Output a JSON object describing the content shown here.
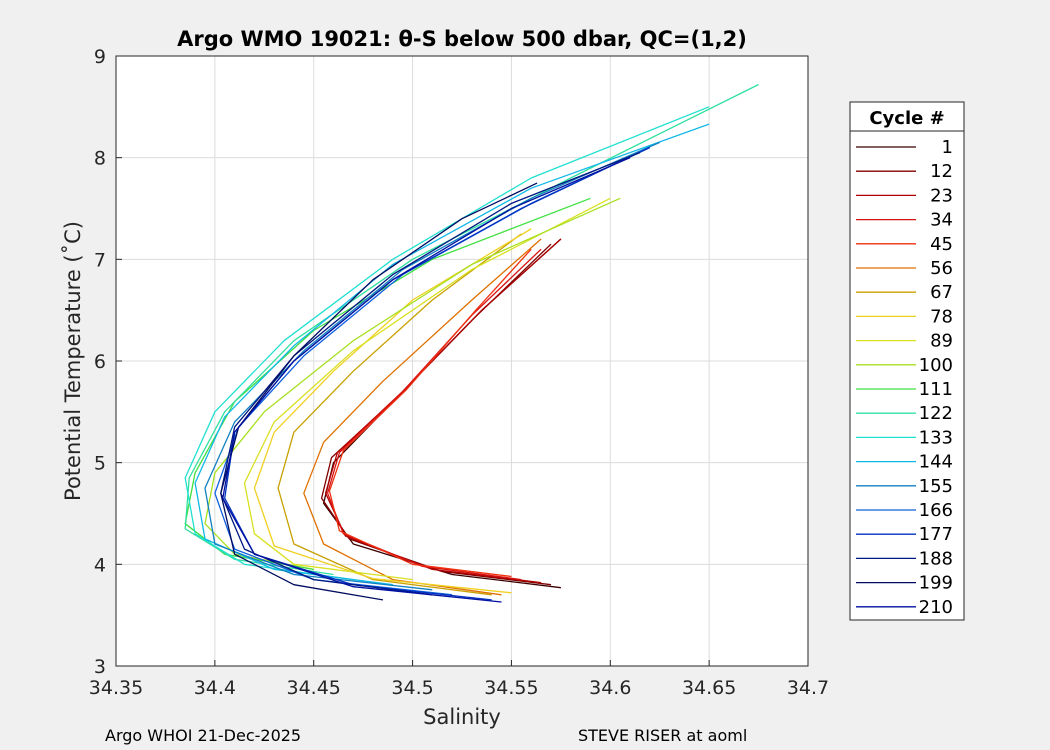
{
  "chart_data": {
    "type": "line",
    "title": "Argo WMO 19021: θ-S below 500 dbar,  QC=(1,2)",
    "xlabel": "Salinity",
    "ylabel": "Potential Temperature (˚C)",
    "xlim": [
      34.35,
      34.7
    ],
    "ylim": [
      3,
      9
    ],
    "xticks": [
      "34.35",
      "34.4",
      "34.45",
      "34.5",
      "34.55",
      "34.6",
      "34.65",
      "34.7"
    ],
    "yticks": [
      "3",
      "4",
      "5",
      "6",
      "7",
      "8",
      "9"
    ],
    "grid": true,
    "legend": {
      "title": "Cycle #",
      "placement": "right-outside",
      "entries": [
        {
          "label": "1",
          "color": "#3a0000"
        },
        {
          "label": "12",
          "color": "#800000"
        },
        {
          "label": "23",
          "color": "#b00000"
        },
        {
          "label": "34",
          "color": "#d81010"
        },
        {
          "label": "45",
          "color": "#f03010"
        },
        {
          "label": "56",
          "color": "#e07000"
        },
        {
          "label": "67",
          "color": "#c8a000"
        },
        {
          "label": "78",
          "color": "#f0d020"
        },
        {
          "label": "89",
          "color": "#d8e020"
        },
        {
          "label": "100",
          "color": "#a8e020"
        },
        {
          "label": "111",
          "color": "#40e040"
        },
        {
          "label": "122",
          "color": "#30e0a0"
        },
        {
          "label": "133",
          "color": "#20e0d0"
        },
        {
          "label": "144",
          "color": "#10b8e8"
        },
        {
          "label": "155",
          "color": "#1080c0"
        },
        {
          "label": "166",
          "color": "#1060e0"
        },
        {
          "label": "177",
          "color": "#0030c0"
        },
        {
          "label": "188",
          "color": "#001880"
        },
        {
          "label": "199",
          "color": "#000c60"
        },
        {
          "label": "210",
          "color": "#0010a0"
        }
      ]
    },
    "series": [
      {
        "name": "1",
        "color": "#3a0000",
        "x": [
          34.575,
          34.52,
          34.47,
          34.455,
          34.46,
          34.49,
          34.535,
          34.575
        ],
        "y": [
          3.77,
          3.9,
          4.2,
          4.6,
          5.0,
          5.6,
          6.5,
          7.2
        ]
      },
      {
        "name": "12",
        "color": "#800000",
        "x": [
          34.57,
          34.515,
          34.468,
          34.454,
          34.459,
          34.49,
          34.53,
          34.57
        ],
        "y": [
          3.8,
          3.93,
          4.25,
          4.65,
          5.05,
          5.6,
          6.4,
          7.15
        ]
      },
      {
        "name": "23",
        "color": "#b00000",
        "x": [
          34.565,
          34.51,
          34.466,
          34.456,
          34.462,
          34.495,
          34.535,
          34.575
        ],
        "y": [
          3.82,
          3.95,
          4.28,
          4.7,
          5.1,
          5.7,
          6.5,
          7.2
        ]
      },
      {
        "name": "34",
        "color": "#d81010",
        "x": [
          34.555,
          34.505,
          34.465,
          34.457,
          34.463,
          34.495,
          34.53,
          34.565
        ],
        "y": [
          3.85,
          3.98,
          4.3,
          4.7,
          5.1,
          5.7,
          6.45,
          7.1
        ]
      },
      {
        "name": "45",
        "color": "#f03010",
        "x": [
          34.55,
          34.5,
          34.463,
          34.458,
          34.465,
          34.497,
          34.532,
          34.56
        ],
        "y": [
          3.88,
          4.0,
          4.33,
          4.72,
          5.12,
          5.72,
          6.5,
          7.1
        ]
      },
      {
        "name": "56",
        "color": "#e07000",
        "x": [
          34.545,
          34.49,
          34.455,
          34.445,
          34.455,
          34.485,
          34.53,
          34.565
        ],
        "y": [
          3.7,
          3.85,
          4.2,
          4.7,
          5.2,
          5.8,
          6.6,
          7.2
        ]
      },
      {
        "name": "67",
        "color": "#c8a000",
        "x": [
          34.54,
          34.48,
          34.44,
          34.432,
          34.44,
          34.47,
          34.51,
          34.555
        ],
        "y": [
          3.7,
          3.85,
          4.2,
          4.75,
          5.3,
          5.9,
          6.6,
          7.25
        ]
      },
      {
        "name": "78",
        "color": "#f0d020",
        "x": [
          34.55,
          34.48,
          34.43,
          34.42,
          34.43,
          34.46,
          34.5,
          34.56
        ],
        "y": [
          3.72,
          3.86,
          4.18,
          4.75,
          5.3,
          5.9,
          6.6,
          7.3
        ]
      },
      {
        "name": "89",
        "color": "#d8e020",
        "x": [
          34.5,
          34.44,
          34.42,
          34.415,
          34.43,
          34.47,
          34.53,
          34.6
        ],
        "y": [
          3.85,
          4.0,
          4.3,
          4.8,
          5.4,
          6.1,
          6.9,
          7.6
        ]
      },
      {
        "name": "100",
        "color": "#a8e020",
        "x": [
          34.45,
          34.41,
          34.395,
          34.4,
          34.425,
          34.47,
          34.53,
          34.605
        ],
        "y": [
          3.95,
          4.1,
          4.4,
          4.9,
          5.5,
          6.2,
          6.95,
          7.6
        ]
      },
      {
        "name": "111",
        "color": "#40e040",
        "x": [
          34.45,
          34.405,
          34.385,
          34.39,
          34.41,
          34.45,
          34.51,
          34.59
        ],
        "y": [
          3.95,
          4.1,
          4.4,
          4.9,
          5.6,
          6.3,
          7.0,
          7.6
        ]
      },
      {
        "name": "122",
        "color": "#30e0a0",
        "x": [
          34.46,
          34.41,
          34.385,
          34.387,
          34.405,
          34.44,
          34.5,
          34.58,
          34.675
        ],
        "y": [
          3.9,
          4.05,
          4.35,
          4.85,
          5.5,
          6.2,
          7.0,
          7.8,
          8.72
        ]
      },
      {
        "name": "133",
        "color": "#20e0d0",
        "x": [
          34.47,
          34.415,
          34.39,
          34.385,
          34.4,
          34.435,
          34.49,
          34.56,
          34.65
        ],
        "y": [
          3.85,
          4.0,
          4.3,
          4.85,
          5.5,
          6.2,
          7.0,
          7.8,
          8.5
        ]
      },
      {
        "name": "144",
        "color": "#10b8e8",
        "x": [
          34.49,
          34.43,
          34.395,
          34.39,
          34.405,
          34.44,
          34.49,
          34.56,
          34.65
        ],
        "y": [
          3.8,
          3.95,
          4.25,
          4.8,
          5.45,
          6.15,
          6.95,
          7.7,
          8.33
        ]
      },
      {
        "name": "155",
        "color": "#1080c0",
        "x": [
          34.51,
          34.44,
          34.4,
          34.395,
          34.41,
          34.445,
          34.495,
          34.56,
          34.625
        ],
        "y": [
          3.75,
          3.9,
          4.2,
          4.75,
          5.4,
          6.1,
          6.9,
          7.6,
          8.15
        ]
      },
      {
        "name": "166",
        "color": "#1060e0",
        "x": [
          34.52,
          34.45,
          34.41,
          34.4,
          34.412,
          34.445,
          34.495,
          34.56,
          34.62
        ],
        "y": [
          3.7,
          3.85,
          4.15,
          4.7,
          5.35,
          6.05,
          6.85,
          7.55,
          8.1
        ]
      },
      {
        "name": "177",
        "color": "#0030c0",
        "x": [
          34.54,
          34.47,
          34.42,
          34.405,
          34.41,
          34.44,
          34.49,
          34.555,
          34.62
        ],
        "y": [
          3.65,
          3.8,
          4.1,
          4.65,
          5.3,
          6.0,
          6.8,
          7.5,
          8.1
        ]
      },
      {
        "name": "188",
        "color": "#001880",
        "x": [
          34.51,
          34.45,
          34.415,
          34.403,
          34.41,
          34.44,
          34.49,
          34.55,
          34.615
        ],
        "y": [
          3.7,
          3.85,
          4.15,
          4.7,
          5.35,
          6.05,
          6.85,
          7.55,
          8.05
        ]
      },
      {
        "name": "199",
        "color": "#000c60",
        "x": [
          34.485,
          34.44,
          34.41,
          34.403,
          34.412,
          34.44,
          34.48,
          34.525,
          34.563
        ],
        "y": [
          3.65,
          3.8,
          4.1,
          4.7,
          5.35,
          6.05,
          6.8,
          7.4,
          7.75
        ]
      },
      {
        "name": "210",
        "color": "#0010a0",
        "x": [
          34.545,
          34.47,
          34.42,
          34.404,
          34.41,
          34.44,
          34.49,
          34.55,
          34.61
        ],
        "y": [
          3.63,
          3.78,
          4.1,
          4.65,
          5.3,
          6.0,
          6.8,
          7.5,
          8.0
        ]
      }
    ]
  },
  "footer": {
    "left": "Argo WHOI 21-Dec-2025",
    "right": "STEVE RISER at aoml"
  }
}
